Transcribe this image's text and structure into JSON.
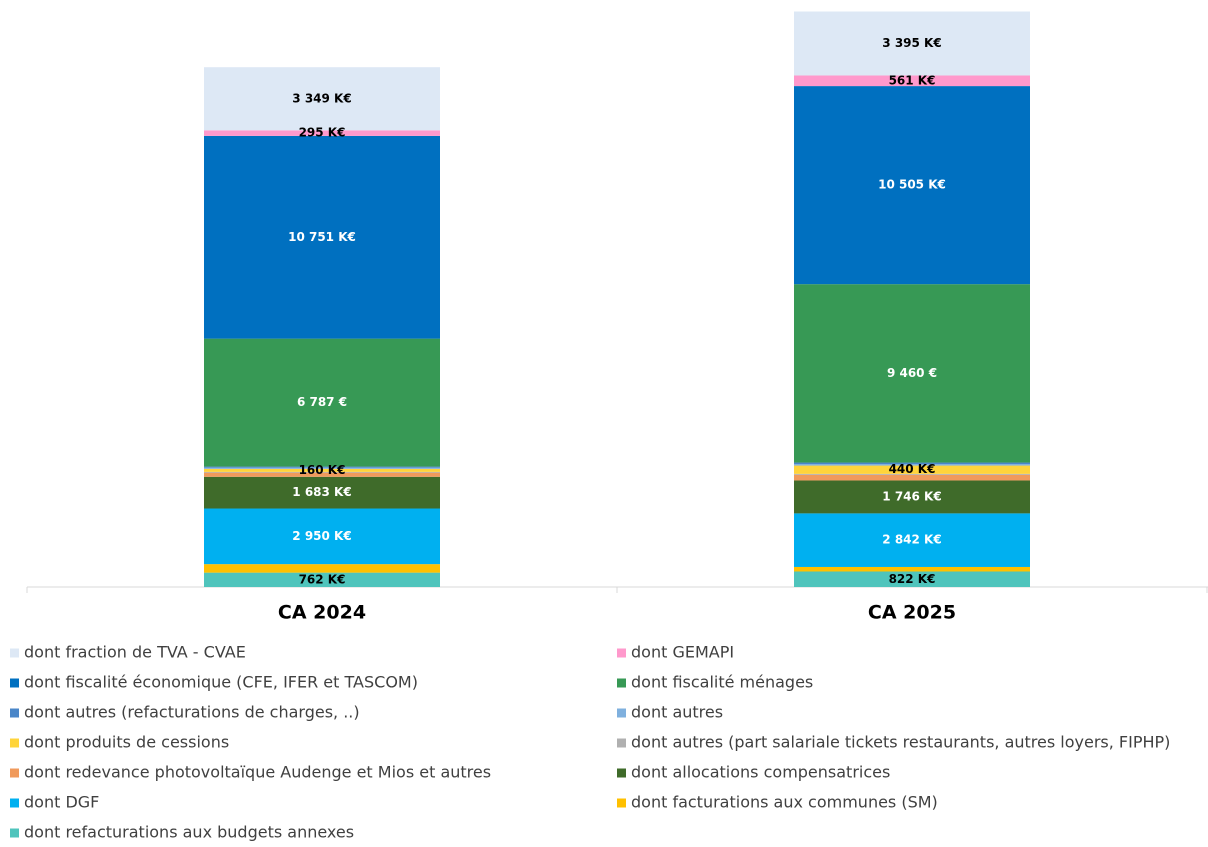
{
  "chart_data": {
    "type": "stacked_bar",
    "categories": [
      "CA 2024",
      "CA 2025"
    ],
    "ylim": [
      0,
      30600
    ],
    "series": [
      {
        "name": "dont fraction de TVA - CVAE",
        "color": "#dde8f5",
        "values": [
          3349,
          3395
        ],
        "value_labels": [
          "3 349  K€",
          "3 395  K€"
        ]
      },
      {
        "name": "dont GEMAPI",
        "color": "#ff99cc",
        "values": [
          295,
          561
        ],
        "value_labels": [
          "295  K€",
          "561  K€"
        ]
      },
      {
        "name": "dont fiscalité économique (CFE, IFER et TASCOM)",
        "color": "#0070c0",
        "values": [
          10751,
          10505
        ],
        "value_labels": [
          "10 751  K€",
          "10 505  K€"
        ]
      },
      {
        "name": "dont fiscalité ménages",
        "color": "#379955",
        "values": [
          6787,
          9460
        ],
        "value_labels": [
          "6 787 €",
          "9 460 €"
        ]
      },
      {
        "name": "dont autres (refacturations de charges, ..)",
        "color": "#4a86c8",
        "values": [
          60,
          80
        ],
        "value_labels": [
          null,
          null
        ]
      },
      {
        "name": "dont autres",
        "color": "#7fb0de",
        "values": [
          60,
          80
        ],
        "value_labels": [
          null,
          null
        ]
      },
      {
        "name": "dont produits de cessions",
        "color": "#ffd43b",
        "values": [
          160,
          440
        ],
        "value_labels": [
          "160  K€",
          "440  K€"
        ]
      },
      {
        "name": "dont autres (part salariale tickets restaurants, autres loyers, FIPHP)",
        "color": "#b0b0b0",
        "values": [
          40,
          50
        ],
        "value_labels": [
          null,
          null
        ]
      },
      {
        "name": "dont redevance photovoltaïque Audenge et Mios et autres",
        "color": "#f09a5c",
        "values": [
          220,
          300
        ],
        "value_labels": [
          null,
          null
        ]
      },
      {
        "name": "dont allocations compensatrices",
        "color": "#3f6b2a",
        "values": [
          1683,
          1746
        ],
        "value_labels": [
          "1 683  K€",
          "1 746  K€"
        ]
      },
      {
        "name": "dont DGF",
        "color": "#00b0f0",
        "values": [
          2950,
          2842
        ],
        "value_labels": [
          "2 950  K€",
          "2 842  K€"
        ]
      },
      {
        "name": "dont facturations aux communes (SM)",
        "color": "#ffc000",
        "values": [
          450,
          240
        ],
        "value_labels": [
          null,
          null
        ]
      },
      {
        "name": "dont refacturations aux budgets annexes",
        "color": "#4fc4bc",
        "values": [
          762,
          822
        ],
        "value_labels": [
          "762  K€",
          "822  K€"
        ]
      }
    ]
  }
}
